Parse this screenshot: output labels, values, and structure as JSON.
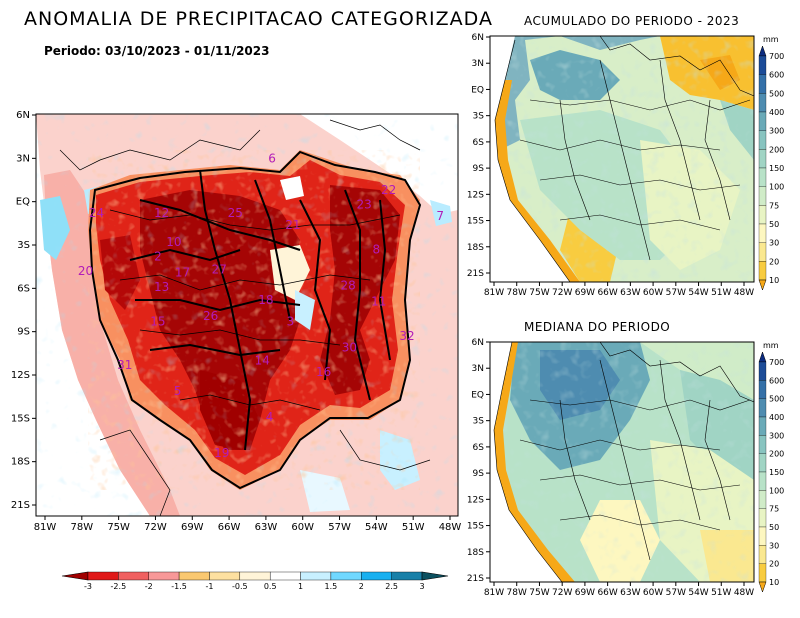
{
  "title": "ANOMALIA DE PRECIPITACAO CATEGORIZADA",
  "period": "Periodo: 03/10/2023 - 01/11/2023",
  "map_top": {
    "title": "ACUMULADO DO PERIODO - 2023"
  },
  "map_bottom": {
    "title": "MEDIANA DO PERIODO"
  },
  "lat_labels": [
    "6N",
    "3N",
    "EQ",
    "3S",
    "6S",
    "9S",
    "12S",
    "15S",
    "18S",
    "21S"
  ],
  "lon_labels": [
    "81W",
    "78W",
    "75W",
    "72W",
    "69W",
    "66W",
    "63W",
    "60W",
    "57W",
    "54W",
    "51W",
    "48W"
  ],
  "anomaly_legend": {
    "labels": [
      "-3",
      "-2.5",
      "-2",
      "-1.5",
      "-1",
      "-0.5",
      "0.5",
      "1",
      "1.5",
      "2",
      "2.5",
      "3"
    ],
    "colors": [
      "#a00000",
      "#e01818",
      "#f06060",
      "#f89898",
      "#fac870",
      "#fde0a0",
      "#fff4d8",
      "#ffffff",
      "#c8f0ff",
      "#70d8ff",
      "#18b0f0",
      "#1880a8",
      "#0c5060"
    ]
  },
  "precip_legend": {
    "unit": "mm",
    "labels": [
      "10",
      "20",
      "30",
      "50",
      "75",
      "100",
      "150",
      "200",
      "300",
      "400",
      "500",
      "600",
      "700"
    ],
    "colors": [
      "#f6a818",
      "#f8cc40",
      "#fae890",
      "#fdf7c0",
      "#e8f4c4",
      "#d0ecc8",
      "#b8e2c8",
      "#a0d4c4",
      "#88c4c0",
      "#6aaab8",
      "#4e8cb0",
      "#3470a8",
      "#1c4c98",
      "#0c2c80"
    ]
  },
  "basin_numbers": [
    {
      "n": "6",
      "lon": -62.5,
      "lat": 3.0
    },
    {
      "n": "22",
      "lon": -53.0,
      "lat": 0.8
    },
    {
      "n": "23",
      "lon": -55.0,
      "lat": -0.2
    },
    {
      "n": "24",
      "lon": -76.8,
      "lat": -0.8
    },
    {
      "n": "12",
      "lon": -71.5,
      "lat": -0.8
    },
    {
      "n": "25",
      "lon": -65.5,
      "lat": -0.8
    },
    {
      "n": "21",
      "lon": -60.8,
      "lat": -1.6
    },
    {
      "n": "7",
      "lon": -48.8,
      "lat": -1.0
    },
    {
      "n": "10",
      "lon": -70.5,
      "lat": -2.8
    },
    {
      "n": "8",
      "lon": -54.0,
      "lat": -3.3
    },
    {
      "n": "2",
      "lon": -71.8,
      "lat": -3.8
    },
    {
      "n": "20",
      "lon": -77.7,
      "lat": -4.8
    },
    {
      "n": "17",
      "lon": -69.8,
      "lat": -4.9
    },
    {
      "n": "27",
      "lon": -66.8,
      "lat": -4.7
    },
    {
      "n": "13",
      "lon": -71.5,
      "lat": -5.9
    },
    {
      "n": "28",
      "lon": -56.3,
      "lat": -5.8
    },
    {
      "n": "18",
      "lon": -63.0,
      "lat": -6.8
    },
    {
      "n": "11",
      "lon": -53.8,
      "lat": -6.9
    },
    {
      "n": "15",
      "lon": -71.8,
      "lat": -8.3
    },
    {
      "n": "26",
      "lon": -67.5,
      "lat": -7.9
    },
    {
      "n": "3",
      "lon": -61.0,
      "lat": -8.3
    },
    {
      "n": "32",
      "lon": -51.5,
      "lat": -9.3
    },
    {
      "n": "30",
      "lon": -56.2,
      "lat": -10.1
    },
    {
      "n": "14",
      "lon": -63.3,
      "lat": -11.0
    },
    {
      "n": "31",
      "lon": -74.5,
      "lat": -11.3
    },
    {
      "n": "16",
      "lon": -58.3,
      "lat": -11.8
    },
    {
      "n": "5",
      "lon": -70.2,
      "lat": -13.1
    },
    {
      "n": "4",
      "lon": -62.7,
      "lat": -14.9
    },
    {
      "n": "19",
      "lon": -66.6,
      "lat": -17.4
    }
  ]
}
